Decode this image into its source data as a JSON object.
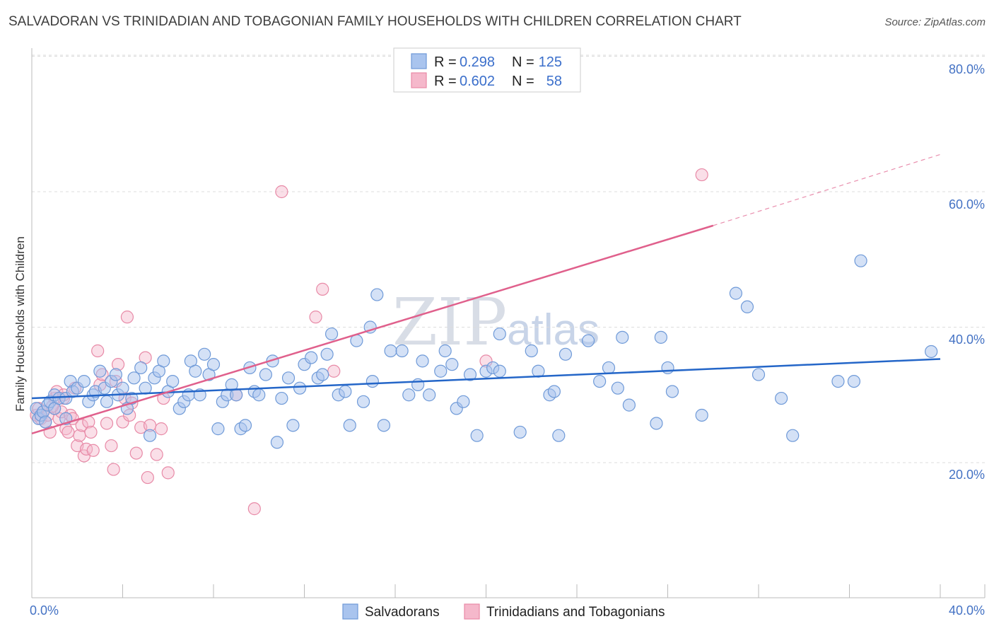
{
  "title": "SALVADORAN VS TRINIDADIAN AND TOBAGONIAN FAMILY HOUSEHOLDS WITH CHILDREN CORRELATION CHART",
  "source": "Source: ZipAtlas.com",
  "watermark": {
    "part1": "ZIP",
    "part2": "atlas"
  },
  "colors": {
    "blue_fill": "#a9c4ee",
    "blue_stroke": "#6f9ad8",
    "blue_line": "#2466c8",
    "pink_fill": "#f5b8cb",
    "pink_stroke": "#e88aa7",
    "pink_line": "#e0608c",
    "grid": "#dcdcdc",
    "label": "#4472c4"
  },
  "legend": {
    "row1": {
      "r_label": "R =",
      "r_value": "0.298",
      "n_label": "N =",
      "n_value": "125"
    },
    "row2": {
      "r_label": "R =",
      "r_value": "0.602",
      "n_label": "N =",
      "n_value": "58"
    }
  },
  "chart_data": {
    "type": "scatter",
    "title": "SALVADORAN VS TRINIDADIAN AND TOBAGONIAN FAMILY HOUSEHOLDS WITH CHILDREN CORRELATION CHART",
    "xlabel": "",
    "ylabel": "Family Households with Children",
    "xlim": [
      0,
      40
    ],
    "ylim": [
      0,
      82
    ],
    "x_tick_labels": [
      "0.0%",
      "40.0%"
    ],
    "y_ticks": [
      20,
      40,
      60,
      80
    ],
    "y_tick_labels": [
      "20.0%",
      "40.0%",
      "60.0%",
      "80.0%"
    ],
    "grid": true,
    "legend_position": "top-center",
    "series": [
      {
        "name": "Salvadorans",
        "R": 0.298,
        "N": 125,
        "trend": {
          "x0": 0,
          "y0": 29.5,
          "x1": 40,
          "y1": 35.3
        },
        "points": [
          [
            0.2,
            28
          ],
          [
            0.3,
            26.5
          ],
          [
            0.4,
            27
          ],
          [
            0.5,
            27.5
          ],
          [
            0.6,
            26
          ],
          [
            0.7,
            28.5
          ],
          [
            0.8,
            29
          ],
          [
            1.0,
            30
          ],
          [
            1.0,
            28
          ],
          [
            1.2,
            29.5
          ],
          [
            1.5,
            26.5
          ],
          [
            1.5,
            29.5
          ],
          [
            1.7,
            32
          ],
          [
            1.8,
            30.5
          ],
          [
            2.0,
            31
          ],
          [
            2.3,
            32
          ],
          [
            2.5,
            29
          ],
          [
            2.7,
            30
          ],
          [
            2.8,
            30.5
          ],
          [
            3.0,
            33.5
          ],
          [
            3.2,
            31
          ],
          [
            3.3,
            29
          ],
          [
            3.5,
            32
          ],
          [
            3.7,
            33
          ],
          [
            3.8,
            30
          ],
          [
            4.0,
            31
          ],
          [
            4.2,
            28
          ],
          [
            4.4,
            29.5
          ],
          [
            4.5,
            32.5
          ],
          [
            4.8,
            34
          ],
          [
            5.0,
            31
          ],
          [
            5.2,
            24
          ],
          [
            5.4,
            32.5
          ],
          [
            5.6,
            33.5
          ],
          [
            5.8,
            35
          ],
          [
            6.0,
            30.5
          ],
          [
            6.2,
            32
          ],
          [
            6.5,
            28
          ],
          [
            6.7,
            29
          ],
          [
            6.9,
            30
          ],
          [
            7.0,
            35
          ],
          [
            7.2,
            33.5
          ],
          [
            7.4,
            30
          ],
          [
            7.6,
            36
          ],
          [
            7.8,
            33
          ],
          [
            8.0,
            34.5
          ],
          [
            8.2,
            25
          ],
          [
            8.4,
            29
          ],
          [
            8.6,
            30
          ],
          [
            8.8,
            31.5
          ],
          [
            9.0,
            30
          ],
          [
            9.2,
            25
          ],
          [
            9.4,
            25.5
          ],
          [
            9.6,
            34
          ],
          [
            9.8,
            30.5
          ],
          [
            10.0,
            30
          ],
          [
            10.3,
            33
          ],
          [
            10.6,
            35
          ],
          [
            10.8,
            23
          ],
          [
            11.0,
            29.5
          ],
          [
            11.3,
            32.5
          ],
          [
            11.5,
            25.5
          ],
          [
            11.8,
            31
          ],
          [
            12.0,
            34.5
          ],
          [
            12.3,
            35.5
          ],
          [
            12.6,
            32.5
          ],
          [
            12.8,
            33
          ],
          [
            13.0,
            36
          ],
          [
            13.2,
            39
          ],
          [
            13.5,
            30
          ],
          [
            13.8,
            30.5
          ],
          [
            14.0,
            25.5
          ],
          [
            14.3,
            38
          ],
          [
            14.6,
            29
          ],
          [
            14.9,
            40
          ],
          [
            15.2,
            44.8
          ],
          [
            15.0,
            32
          ],
          [
            15.5,
            25.5
          ],
          [
            15.8,
            36.5
          ],
          [
            16.3,
            36.5
          ],
          [
            16.6,
            30
          ],
          [
            17.0,
            31.5
          ],
          [
            17.2,
            35
          ],
          [
            17.5,
            30
          ],
          [
            18.0,
            33.5
          ],
          [
            18.2,
            36.5
          ],
          [
            18.5,
            34.5
          ],
          [
            18.7,
            28
          ],
          [
            19.0,
            29
          ],
          [
            19.3,
            33
          ],
          [
            19.6,
            24
          ],
          [
            20.0,
            33.5
          ],
          [
            20.3,
            34
          ],
          [
            20.6,
            39
          ],
          [
            20.6,
            33.5
          ],
          [
            21.5,
            24.5
          ],
          [
            22.0,
            36.5
          ],
          [
            22.3,
            33.5
          ],
          [
            22.8,
            30
          ],
          [
            23.0,
            30.5
          ],
          [
            23.2,
            24
          ],
          [
            23.5,
            36
          ],
          [
            24.5,
            38
          ],
          [
            25.0,
            32
          ],
          [
            25.4,
            34
          ],
          [
            25.8,
            31
          ],
          [
            26.0,
            38.5
          ],
          [
            26.3,
            28.5
          ],
          [
            27.5,
            25.8
          ],
          [
            27.7,
            38.5
          ],
          [
            28.0,
            34
          ],
          [
            28.2,
            30.5
          ],
          [
            29.5,
            27
          ],
          [
            31.0,
            45
          ],
          [
            31.5,
            43
          ],
          [
            32.0,
            33
          ],
          [
            33.0,
            29.5
          ],
          [
            33.5,
            24
          ],
          [
            35.5,
            32
          ],
          [
            36.2,
            32
          ],
          [
            36.5,
            49.8
          ],
          [
            39.6,
            36.4
          ]
        ]
      },
      {
        "name": "Trinidadians and Tobagonians",
        "R": 0.602,
        "N": 58,
        "trend": {
          "x0": 0,
          "y0": 24.3,
          "x1": 30,
          "y1": 55
        },
        "trend_dashed": {
          "x0": 30,
          "y0": 55,
          "x1": 40,
          "y1": 65.5
        },
        "points": [
          [
            0.2,
            27
          ],
          [
            0.3,
            28
          ],
          [
            0.4,
            26.5
          ],
          [
            0.5,
            27.5
          ],
          [
            0.6,
            26
          ],
          [
            0.7,
            27
          ],
          [
            0.8,
            24.5
          ],
          [
            1.0,
            28
          ],
          [
            1.0,
            29.5
          ],
          [
            1.1,
            30.5
          ],
          [
            1.2,
            26.5
          ],
          [
            1.3,
            27.5
          ],
          [
            1.4,
            29.5
          ],
          [
            1.5,
            25
          ],
          [
            1.6,
            24.5
          ],
          [
            1.7,
            27
          ],
          [
            1.8,
            26.5
          ],
          [
            1.9,
            31
          ],
          [
            2.0,
            22.5
          ],
          [
            2.1,
            24
          ],
          [
            2.2,
            25.5
          ],
          [
            2.3,
            21
          ],
          [
            2.4,
            22
          ],
          [
            2.5,
            26
          ],
          [
            2.6,
            24.5
          ],
          [
            2.7,
            21.8
          ],
          [
            2.9,
            36.5
          ],
          [
            3.0,
            31.5
          ],
          [
            3.1,
            33
          ],
          [
            3.3,
            25.8
          ],
          [
            3.5,
            22.5
          ],
          [
            3.6,
            19
          ],
          [
            3.7,
            32
          ],
          [
            3.8,
            34.5
          ],
          [
            4.0,
            26
          ],
          [
            4.1,
            29.5
          ],
          [
            4.2,
            41.5
          ],
          [
            4.3,
            27
          ],
          [
            4.4,
            28.8
          ],
          [
            4.6,
            21.4
          ],
          [
            4.8,
            25.2
          ],
          [
            5.0,
            35.5
          ],
          [
            5.1,
            17.8
          ],
          [
            5.2,
            25.5
          ],
          [
            5.5,
            21.2
          ],
          [
            5.7,
            25
          ],
          [
            5.8,
            29.5
          ],
          [
            6.0,
            18.5
          ],
          [
            9.0,
            30
          ],
          [
            9.8,
            13.2
          ],
          [
            11.0,
            60
          ],
          [
            12.5,
            41.5
          ],
          [
            12.8,
            45.6
          ],
          [
            13.3,
            33.5
          ],
          [
            20.0,
            35
          ],
          [
            29.5,
            62.5
          ],
          [
            1.4,
            30
          ],
          [
            0.9,
            28.3
          ]
        ]
      }
    ]
  }
}
